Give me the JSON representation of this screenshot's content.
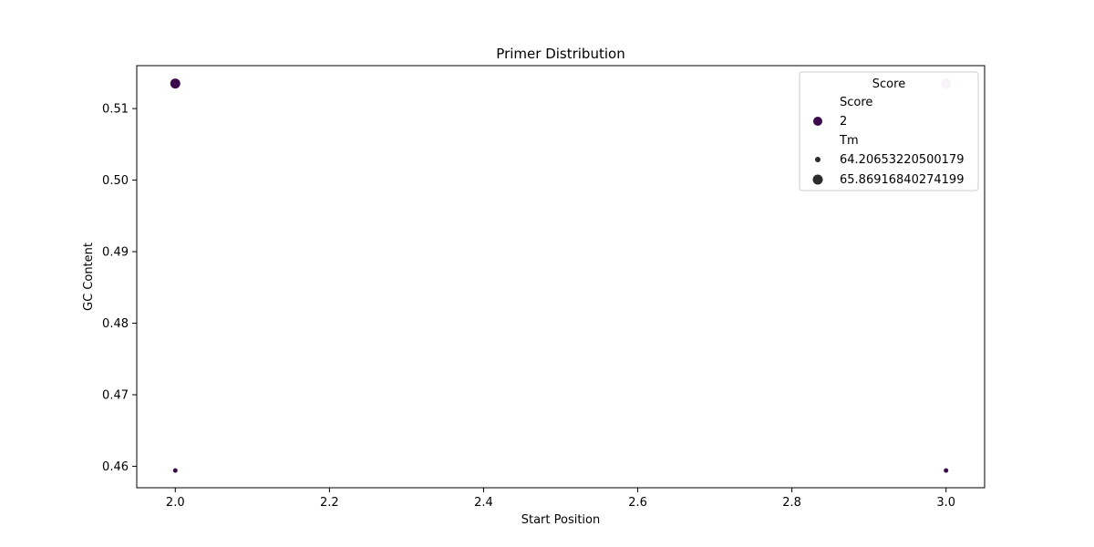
{
  "chart_data": {
    "type": "scatter",
    "title": "Primer Distribution",
    "xlabel": "Start Position",
    "ylabel": "GC Content",
    "xlim": [
      1.95,
      3.05
    ],
    "ylim": [
      0.457,
      0.516
    ],
    "xticks": [
      2.0,
      2.2,
      2.4,
      2.6,
      2.8,
      3.0
    ],
    "yticks": [
      0.46,
      0.47,
      0.48,
      0.49,
      0.5,
      0.51
    ],
    "xtick_labels": [
      "2.0",
      "2.2",
      "2.4",
      "2.6",
      "2.8",
      "3.0"
    ],
    "ytick_labels": [
      "0.46",
      "0.47",
      "0.48",
      "0.49",
      "0.50",
      "0.51"
    ],
    "grid": false,
    "points": [
      {
        "x": 2.0,
        "y": 0.5135,
        "tm": 65.86916840274199,
        "color": "#3b0a4a"
      },
      {
        "x": 3.0,
        "y": 0.5135,
        "tm": 65.86916840274199,
        "color": "#d8c6d8"
      },
      {
        "x": 2.0,
        "y": 0.4594,
        "tm": 64.20653220500179,
        "color": "#3b0a4a"
      },
      {
        "x": 3.0,
        "y": 0.4594,
        "tm": 64.20653220500179,
        "color": "#3b0a4a"
      }
    ],
    "legend": {
      "placement": "upper right",
      "title": "Score",
      "sections": [
        {
          "heading": "Score",
          "entries": [
            {
              "label": "2",
              "color": "#3b0a4a",
              "size": "large"
            }
          ]
        },
        {
          "heading": "Tm",
          "entries": [
            {
              "label": "64.20653220500179",
              "color": "#2b2b2b",
              "size": "small"
            },
            {
              "label": "65.86916840274199",
              "color": "#2b2b2b",
              "size": "large"
            }
          ]
        }
      ]
    }
  }
}
